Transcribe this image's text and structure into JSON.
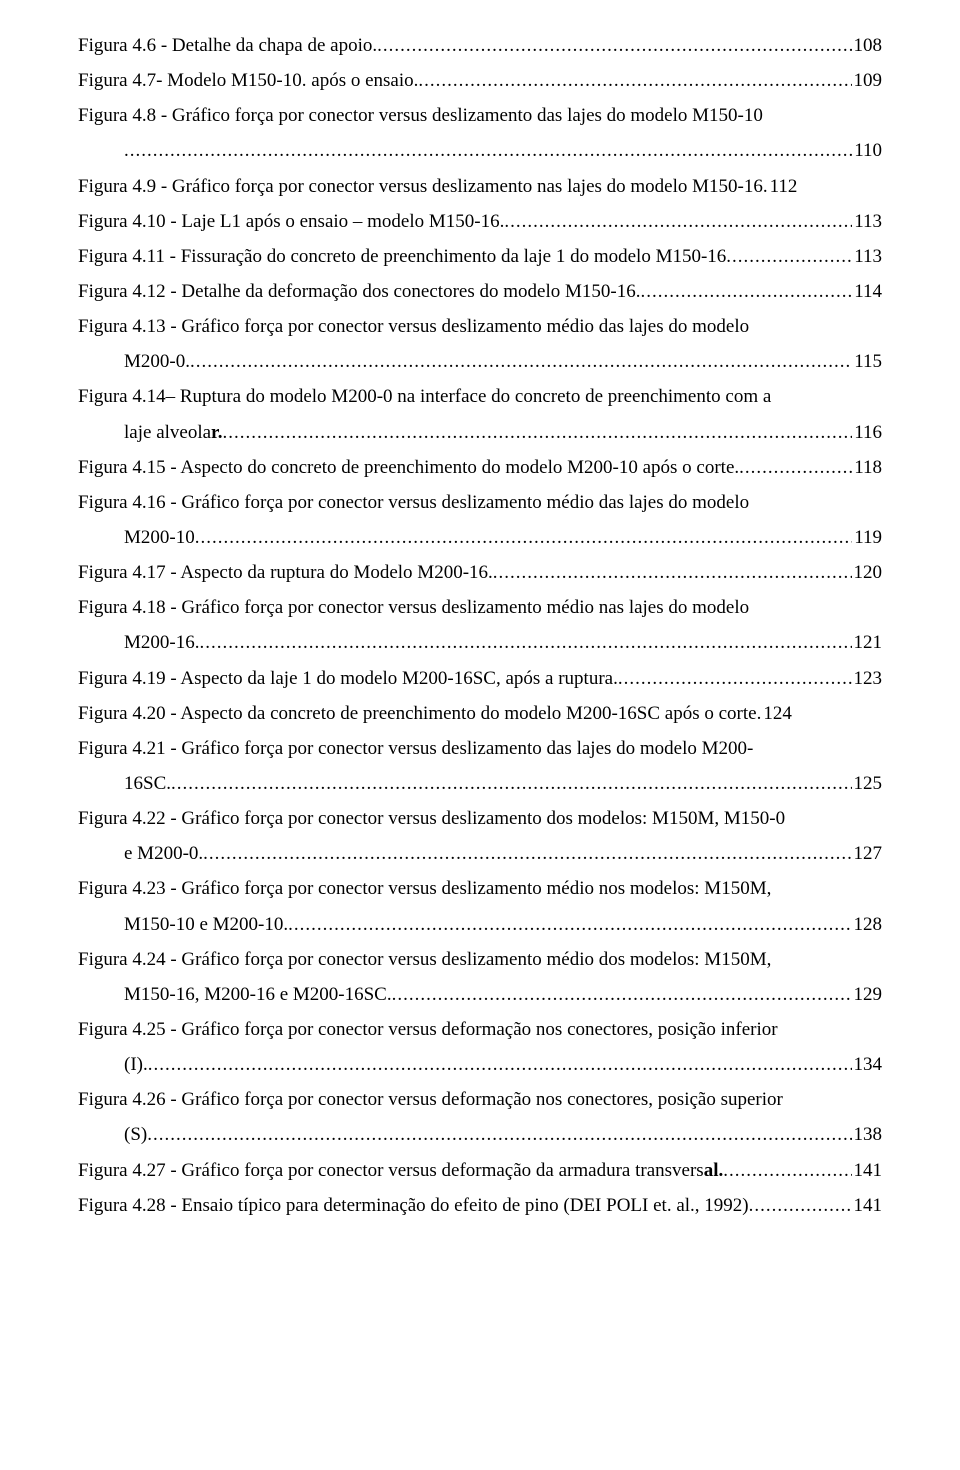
{
  "font": {
    "family": "Times New Roman",
    "size_pt": 14,
    "color": "#000000",
    "background": "#ffffff",
    "line_height": 1.85
  },
  "entries": [
    {
      "lines": [
        {
          "text": "Figura 4.6 - Detalhe da chapa de apoio.",
          "page": "108",
          "indent": false
        }
      ]
    },
    {
      "lines": [
        {
          "text": "Figura 4.7- Modelo M150-10.  após o ensaio.",
          "page": "109",
          "indent": false
        }
      ]
    },
    {
      "lines": [
        {
          "text": "Figura 4.8 - Gráfico força por conector versus deslizamento das lajes do modelo   M150-10",
          "wrap": true,
          "indent": false
        },
        {
          "text": "",
          "page": "110",
          "indent": true
        }
      ]
    },
    {
      "lines": [
        {
          "text": "Figura 4.9 - Gráfico força por conector versus deslizamento nas lajes do modelo M150-16.",
          "page_plain": "112",
          "indent": false
        }
      ]
    },
    {
      "lines": [
        {
          "text": "Figura 4.10 -  Laje L1 após o ensaio – modelo M150-16. ",
          "page": "113",
          "indent": false
        }
      ]
    },
    {
      "lines": [
        {
          "text": "Figura 4.11 -  Fissuração do concreto de preenchimento da laje 1 do modelo M150-16",
          "page": "113",
          "indent": false
        }
      ]
    },
    {
      "lines": [
        {
          "text": "Figura 4.12 - Detalhe da deformação dos conectores do modelo M150-16.",
          "page": "114",
          "indent": false
        }
      ]
    },
    {
      "lines": [
        {
          "text": "Figura 4.13 - Gráfico força por conector versus deslizamento médio das lajes do modelo",
          "wrap": true,
          "indent": false
        },
        {
          "text": "M200-0. ",
          "page": "115",
          "indent": true
        }
      ]
    },
    {
      "lines": [
        {
          "text": "Figura 4.14– Ruptura do modelo M200-0 na interface do concreto de preenchimento com a",
          "wrap": true,
          "indent": false
        },
        {
          "text": "laje alveolar.",
          "page": "116",
          "indent": true,
          "bold_word_index": 1
        }
      ]
    },
    {
      "lines": [
        {
          "text": "Figura 4.15 - Aspecto do concreto de preenchimento do modelo M200-10  após o corte.",
          "page": "118",
          "indent": false
        }
      ]
    },
    {
      "lines": [
        {
          "text": "Figura 4.16 - Gráfico força por conector versus deslizamento médio das lajes do modelo",
          "wrap": true,
          "indent": false
        },
        {
          "text": "M200-10",
          "page": "119",
          "indent": true
        }
      ]
    },
    {
      "lines": [
        {
          "text": "Figura 4.17 - Aspecto da ruptura do Modelo M200-16.",
          "page": "120",
          "indent": false
        }
      ]
    },
    {
      "lines": [
        {
          "text": "Figura 4.18 - Gráfico força por conector versus deslizamento médio nas lajes do modelo",
          "wrap": true,
          "indent": false
        },
        {
          "text": "M200-16. ",
          "page": "121",
          "indent": true
        }
      ]
    },
    {
      "lines": [
        {
          "text": "Figura 4.19 - Aspecto da laje 1 do modelo M200-16SC,  após a ruptura. ",
          "page": "123",
          "indent": false
        }
      ]
    },
    {
      "lines": [
        {
          "text": "Figura 4.20 - Aspecto da concreto de preenchimento do modelo M200-16SC após o corte.",
          "page_plain": " 124",
          "indent": false
        }
      ]
    },
    {
      "lines": [
        {
          "text": "Figura 4.21 - Gráfico força por conector versus deslizamento das lajes do modelo M200-",
          "wrap": true,
          "indent": false
        },
        {
          "text": "16SC. ",
          "page": "125",
          "indent": true
        }
      ]
    },
    {
      "lines": [
        {
          "text": "Figura 4.22 - Gráfico força por conector versus deslizamento dos modelos: M150M, M150-0",
          "wrap": true,
          "indent": false
        },
        {
          "text": "e M200-0. ",
          "page": "127",
          "indent": true
        }
      ]
    },
    {
      "lines": [
        {
          "text": "Figura 4.23 -  Gráfico força por conector versus deslizamento médio nos modelos: M150M,",
          "wrap": true,
          "indent": false
        },
        {
          "text": "M150-10 e      M200-10.",
          "page": "128",
          "indent": true
        }
      ]
    },
    {
      "lines": [
        {
          "text": "Figura 4.24 - Gráfico força por conector versus deslizamento médio dos modelos: M150M,",
          "wrap": true,
          "indent": false
        },
        {
          "text": "M150-16, M200-16 e M200-16SC.",
          "page": "129",
          "indent": true
        }
      ]
    },
    {
      "lines": [
        {
          "text": "Figura 4.25 - Gráfico força por conector versus deformação nos conectores, posição inferior",
          "wrap": true,
          "indent": false
        },
        {
          "text": "(I). ",
          "page": "134",
          "indent": true
        }
      ]
    },
    {
      "lines": [
        {
          "text": "Figura 4.26 - Gráfico força por conector versus deformação nos conectores, posição superior",
          "wrap": true,
          "indent": false
        },
        {
          "text": "(S)",
          "page": "138",
          "indent": true
        }
      ]
    },
    {
      "lines": [
        {
          "text": "Figura 4.27 - Gráfico força por conector versus deformação da armadura transversal.",
          "page": "141",
          "indent": false,
          "bold_suffix": "al."
        }
      ]
    },
    {
      "lines": [
        {
          "text": "Figura 4.28 - Ensaio típico para determinação do efeito de pino (DEI POLI et.  al., 1992)",
          "page": "141",
          "indent": false
        }
      ]
    }
  ]
}
